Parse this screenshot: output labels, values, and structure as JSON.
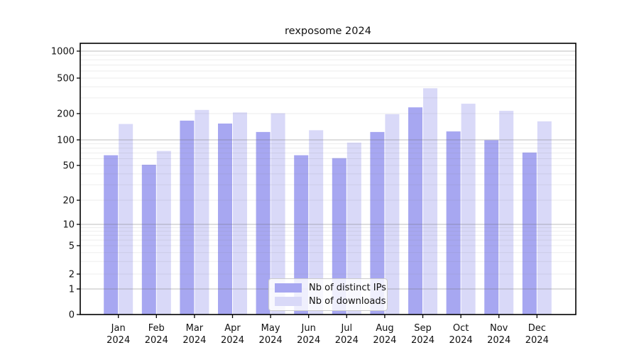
{
  "chart_data": {
    "type": "bar",
    "title": "rexposome 2024",
    "categories": [
      "Jan",
      "Feb",
      "Mar",
      "Apr",
      "May",
      "Jun",
      "Jul",
      "Aug",
      "Sep",
      "Oct",
      "Nov",
      "Dec"
    ],
    "category_year": "2024",
    "series": [
      {
        "name": "Nb of distinct IPs",
        "color": "#a7a7f1",
        "values": [
          66,
          51,
          166,
          154,
          123,
          66,
          61,
          123,
          235,
          125,
          99,
          71
        ]
      },
      {
        "name": "Nb of downloads",
        "color": "#d9d9f8",
        "values": [
          152,
          74,
          220,
          206,
          202,
          129,
          93,
          197,
          385,
          258,
          215,
          163
        ]
      }
    ],
    "xlabel": "",
    "ylabel": "",
    "yscale": "symlog",
    "ylim": [
      0,
      1200
    ],
    "yticks": [
      0,
      1,
      2,
      5,
      10,
      20,
      50,
      100,
      200,
      500,
      1000
    ],
    "grid": {
      "on": true,
      "major_lines": [
        1,
        10,
        100,
        1000
      ],
      "minor_subs": [
        2,
        3,
        4,
        5,
        6,
        7,
        8,
        9
      ]
    },
    "legend": {
      "position": "lower center"
    },
    "axis_color": "#000000",
    "major_grid_color": "rgba(110,110,110,0.45)",
    "minor_grid_color": "rgba(130,130,130,0.14)",
    "tick_label_color": "#111111"
  }
}
